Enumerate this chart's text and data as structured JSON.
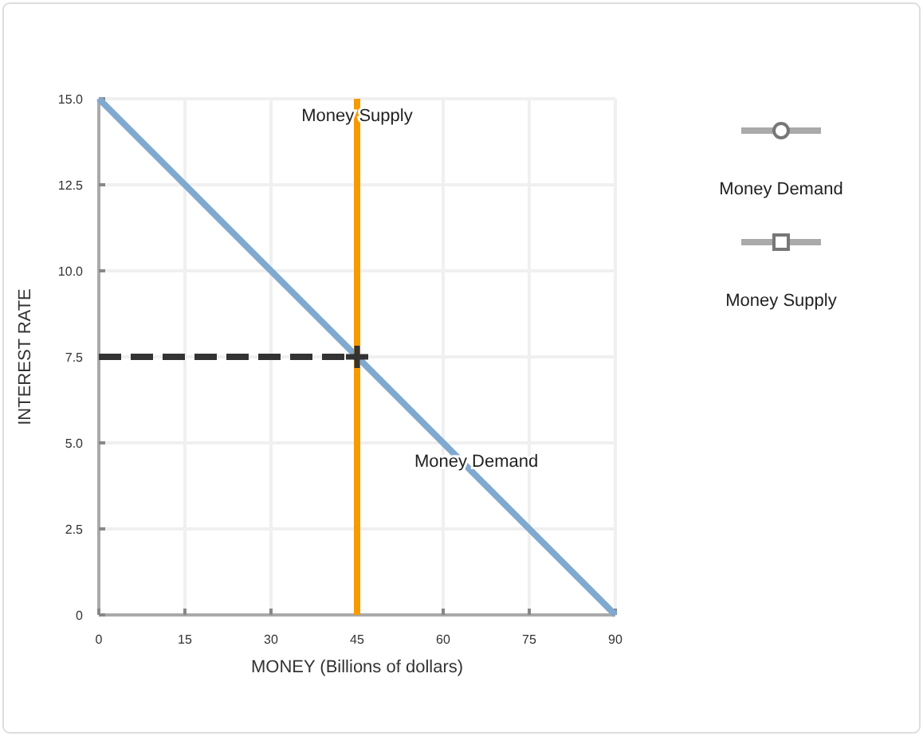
{
  "chart_data": {
    "type": "line",
    "xlabel": "MONEY (Billions of dollars)",
    "ylabel": "INTEREST RATE",
    "xlim": [
      0,
      90
    ],
    "xticks": [
      0,
      15,
      30,
      45,
      60,
      75,
      90
    ],
    "ylim": [
      0,
      15
    ],
    "yticks": [
      0,
      {
        "value": 2.5,
        "label": "2.5"
      },
      {
        "value": 5,
        "label": "5.0"
      },
      {
        "value": 7.5,
        "label": "7.5"
      },
      {
        "value": 10,
        "label": "10.0"
      },
      {
        "value": 12.5,
        "label": "12.5"
      },
      {
        "value": 15,
        "label": "15.0"
      }
    ],
    "grid": true,
    "legend": "right",
    "series": [
      {
        "name": "Money Demand",
        "color": "#80a9d0",
        "x": [
          0,
          90
        ],
        "values": [
          15,
          0
        ]
      },
      {
        "name": "Money Supply",
        "color": "#f79a00",
        "x": [
          45,
          45
        ],
        "values": [
          0,
          15
        ]
      },
      {
        "color": "#333333",
        "x": [
          0,
          45
        ],
        "values": [
          7.5,
          7.5
        ],
        "line_style": "dashed"
      },
      {
        "type": "scatter",
        "color": "#333333",
        "x": [
          45
        ],
        "values": [
          7.5
        ],
        "marker": "cross"
      }
    ]
  }
}
